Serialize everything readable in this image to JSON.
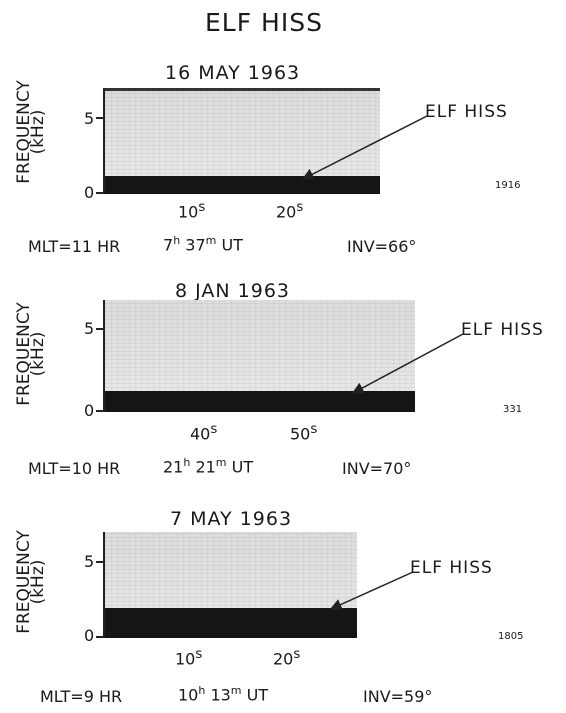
{
  "title": "ELF HISS",
  "panels": [
    {
      "date": "16 MAY 1963",
      "ylabel": "FREQUENCY",
      "yunit": "(kHz)",
      "yticks": [
        "5",
        "0"
      ],
      "xticks": [
        {
          "value": "10",
          "unit": "s"
        },
        {
          "value": "20",
          "unit": "s"
        }
      ],
      "annotation": "ELF HISS",
      "station_id": "1916",
      "mlt": "MLT=11 HR",
      "ut_hours": "7",
      "ut_minutes": "37",
      "ut_label": "UT",
      "inv": "INV=66°",
      "hiss_upper_khz": 1.2
    },
    {
      "date": "8 JAN 1963",
      "ylabel": "FREQUENCY",
      "yunit": "(kHz)",
      "yticks": [
        "5",
        "0"
      ],
      "xticks": [
        {
          "value": "40",
          "unit": "s"
        },
        {
          "value": "50",
          "unit": "s"
        }
      ],
      "annotation": "ELF HISS",
      "station_id": "331",
      "mlt": "MLT=10 HR",
      "ut_hours": "21",
      "ut_minutes": "21",
      "ut_label": "UT",
      "inv": "INV=70°",
      "hiss_upper_khz": 1.3
    },
    {
      "date": "7 MAY 1963",
      "ylabel": "FREQUENCY",
      "yunit": "(kHz)",
      "yticks": [
        "5",
        "0"
      ],
      "xticks": [
        {
          "value": "10",
          "unit": "s"
        },
        {
          "value": "20",
          "unit": "s"
        }
      ],
      "annotation": "ELF HISS",
      "station_id": "1805",
      "mlt": "MLT=9 HR",
      "ut_hours": "10",
      "ut_minutes": "13",
      "ut_label": "UT",
      "inv": "INV=59°",
      "hiss_upper_khz": 2.0
    }
  ]
}
